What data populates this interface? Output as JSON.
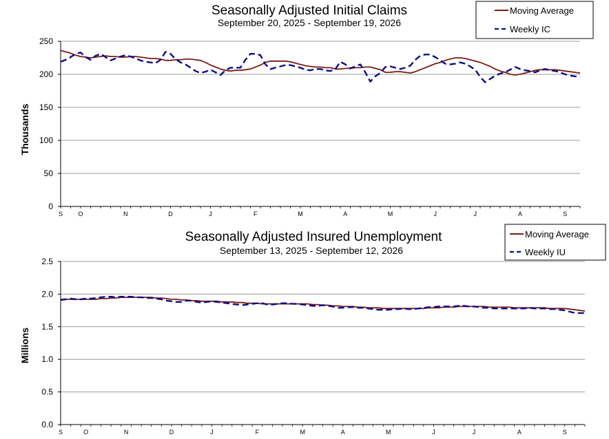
{
  "chart_data": [
    {
      "type": "line",
      "title": "Seasonally Adjusted Initial Claims",
      "subtitle": "September 20, 2025 - September 19, 2026",
      "ylabel": "Thousands",
      "xlabel": "",
      "ylim": [
        0,
        250
      ],
      "yticks": [
        "0",
        "50",
        "100",
        "150",
        "200",
        "250"
      ],
      "month_labels": [
        "S",
        "O",
        "N",
        "D",
        "J",
        "F",
        "M",
        "A",
        "M",
        "J",
        "J",
        "A",
        "S"
      ],
      "month_label_weeks": [
        0,
        4,
        13,
        22,
        30,
        39,
        48,
        57,
        66,
        75,
        83,
        92,
        101
      ],
      "weeks": 105,
      "grid": true,
      "legend": "top-right",
      "series": [
        {
          "name": "Moving Average",
          "color": "#7a1a14",
          "style": "solid",
          "values": [
            236,
            234,
            232,
            229,
            227,
            226,
            225,
            226,
            227,
            228,
            227,
            227,
            226,
            226,
            227,
            227,
            226,
            225,
            224,
            224,
            223,
            221,
            221,
            222,
            222,
            223,
            223,
            222,
            221,
            218,
            214,
            211,
            208,
            206,
            205,
            206,
            206,
            207,
            208,
            211,
            214,
            218,
            220,
            220,
            220,
            220,
            219,
            217,
            215,
            213,
            212,
            211,
            211,
            210,
            210,
            208,
            208,
            209,
            209,
            210,
            210,
            211,
            211,
            209,
            207,
            203,
            203,
            204,
            204,
            203,
            202,
            204,
            207,
            210,
            213,
            216,
            218,
            221,
            223,
            225,
            225,
            224,
            222,
            220,
            218,
            215,
            212,
            208,
            205,
            203,
            200,
            199,
            200,
            202,
            204,
            206,
            207,
            207,
            207,
            207,
            206,
            205,
            204,
            203,
            202
          ]
        },
        {
          "name": "Weekly IC",
          "color": "#0a0a8c",
          "style": "dashed",
          "values": [
            219,
            222,
            226,
            231,
            233,
            226,
            222,
            228,
            231,
            226,
            221,
            224,
            227,
            229,
            227,
            224,
            221,
            219,
            218,
            217,
            222,
            234,
            231,
            223,
            218,
            215,
            210,
            205,
            202,
            204,
            207,
            203,
            199,
            206,
            210,
            210,
            210,
            222,
            231,
            231,
            229,
            215,
            208,
            210,
            212,
            214,
            214,
            212,
            210,
            207,
            206,
            208,
            208,
            206,
            205,
            208,
            219,
            215,
            209,
            212,
            215,
            203,
            189,
            197,
            202,
            211,
            212,
            210,
            208,
            210,
            213,
            222,
            228,
            230,
            230,
            226,
            221,
            216,
            215,
            216,
            218,
            216,
            212,
            207,
            196,
            188,
            193,
            198,
            201,
            203,
            207,
            211,
            208,
            206,
            205,
            203,
            206,
            208,
            206,
            205,
            203,
            200,
            198,
            197,
            196
          ]
        }
      ]
    },
    {
      "type": "line",
      "title": "Seasonally Adjusted Insured Unemployment",
      "subtitle": "September 13, 2025 - September 12, 2026",
      "ylabel": "Millions",
      "xlabel": "",
      "ylim": [
        0,
        2.5
      ],
      "yticks": [
        "0.0",
        "0.5",
        "1.0",
        "1.5",
        "2.0",
        "2.5"
      ],
      "month_labels": [
        "S",
        "O",
        "N",
        "D",
        "J",
        "F",
        "M",
        "A",
        "M",
        "J",
        "J",
        "A",
        "S"
      ],
      "month_label_weeks": [
        0,
        5,
        13,
        22,
        30,
        39,
        48,
        56,
        65,
        74,
        82,
        91,
        100
      ],
      "weeks": 105,
      "grid": true,
      "legend": "top-right",
      "series": [
        {
          "name": "Moving Average",
          "color": "#7a1a14",
          "style": "solid",
          "values": [
            1.92,
            1.92,
            1.92,
            1.92,
            1.92,
            1.92,
            1.92,
            1.92,
            1.93,
            1.93,
            1.94,
            1.94,
            1.95,
            1.95,
            1.95,
            1.95,
            1.95,
            1.95,
            1.95,
            1.94,
            1.94,
            1.93,
            1.92,
            1.92,
            1.91,
            1.91,
            1.9,
            1.9,
            1.89,
            1.89,
            1.89,
            1.89,
            1.88,
            1.88,
            1.88,
            1.87,
            1.87,
            1.86,
            1.86,
            1.86,
            1.85,
            1.85,
            1.85,
            1.85,
            1.85,
            1.85,
            1.85,
            1.85,
            1.85,
            1.85,
            1.84,
            1.84,
            1.83,
            1.83,
            1.82,
            1.82,
            1.81,
            1.81,
            1.81,
            1.8,
            1.8,
            1.79,
            1.79,
            1.79,
            1.78,
            1.78,
            1.78,
            1.78,
            1.78,
            1.78,
            1.78,
            1.78,
            1.78,
            1.79,
            1.79,
            1.79,
            1.8,
            1.8,
            1.8,
            1.81,
            1.81,
            1.81,
            1.81,
            1.81,
            1.81,
            1.8,
            1.8,
            1.8,
            1.8,
            1.8,
            1.79,
            1.79,
            1.79,
            1.79,
            1.79,
            1.79,
            1.79,
            1.78,
            1.78,
            1.78,
            1.78,
            1.77,
            1.76,
            1.75,
            1.74
          ]
        },
        {
          "name": "Weekly IU",
          "color": "#0a0a8c",
          "style": "dashed",
          "values": [
            1.91,
            1.92,
            1.93,
            1.92,
            1.92,
            1.93,
            1.93,
            1.94,
            1.95,
            1.96,
            1.96,
            1.95,
            1.96,
            1.96,
            1.96,
            1.95,
            1.95,
            1.94,
            1.94,
            1.93,
            1.92,
            1.9,
            1.89,
            1.88,
            1.88,
            1.9,
            1.9,
            1.88,
            1.87,
            1.88,
            1.89,
            1.88,
            1.87,
            1.86,
            1.85,
            1.84,
            1.83,
            1.84,
            1.85,
            1.86,
            1.86,
            1.84,
            1.84,
            1.85,
            1.86,
            1.86,
            1.85,
            1.85,
            1.84,
            1.83,
            1.82,
            1.82,
            1.83,
            1.82,
            1.81,
            1.79,
            1.79,
            1.8,
            1.8,
            1.79,
            1.79,
            1.78,
            1.77,
            1.76,
            1.76,
            1.76,
            1.77,
            1.77,
            1.78,
            1.77,
            1.77,
            1.78,
            1.79,
            1.8,
            1.8,
            1.81,
            1.81,
            1.81,
            1.81,
            1.82,
            1.82,
            1.81,
            1.81,
            1.8,
            1.79,
            1.79,
            1.78,
            1.78,
            1.78,
            1.78,
            1.78,
            1.78,
            1.78,
            1.79,
            1.78,
            1.78,
            1.78,
            1.77,
            1.77,
            1.76,
            1.75,
            1.73,
            1.71,
            1.71,
            1.71
          ]
        }
      ]
    }
  ]
}
